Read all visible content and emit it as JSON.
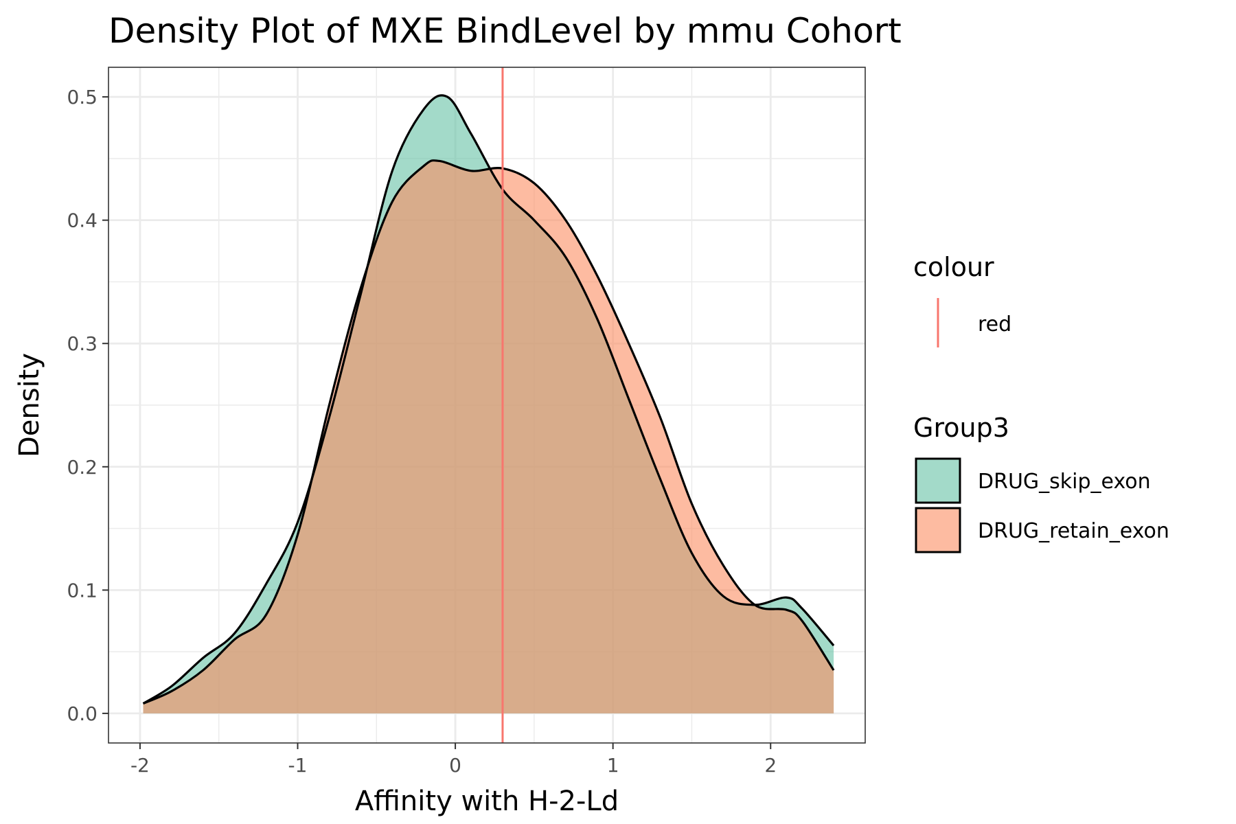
{
  "chart_data": {
    "type": "area",
    "title": "Density Plot of MXE BindLevel by mmu Cohort",
    "xlabel": "Affinity with H-2-Ld",
    "ylabel": "Density",
    "xlim": [
      -2.2,
      2.6
    ],
    "ylim": [
      -0.024,
      0.524
    ],
    "x_ticks": [
      -2,
      -1,
      0,
      1,
      2
    ],
    "x_tick_labels": [
      "-2",
      "-1",
      "0",
      "1",
      "2"
    ],
    "y_ticks": [
      0.0,
      0.1,
      0.2,
      0.3,
      0.4,
      0.5
    ],
    "y_tick_labels": [
      "0.0",
      "0.1",
      "0.2",
      "0.3",
      "0.4",
      "0.5"
    ],
    "grid": true,
    "vline": {
      "x": 0.3,
      "color": "#f8766d"
    },
    "series": [
      {
        "name": "DRUG_skip_exon",
        "color": "#66c2a5",
        "x": [
          -1.98,
          -1.8,
          -1.6,
          -1.4,
          -1.2,
          -1.0,
          -0.8,
          -0.6,
          -0.4,
          -0.2,
          -0.05,
          0.1,
          0.3,
          0.5,
          0.7,
          0.9,
          1.1,
          1.3,
          1.5,
          1.7,
          1.9,
          2.1,
          2.2,
          2.4
        ],
        "y": [
          0.008,
          0.022,
          0.045,
          0.065,
          0.105,
          0.155,
          0.24,
          0.34,
          0.44,
          0.49,
          0.5,
          0.47,
          0.425,
          0.4,
          0.37,
          0.32,
          0.255,
          0.19,
          0.13,
          0.095,
          0.088,
          0.094,
          0.085,
          0.055
        ]
      },
      {
        "name": "DRUG_retain_exon",
        "color": "#fc8d62",
        "x": [
          -1.98,
          -1.8,
          -1.6,
          -1.4,
          -1.2,
          -1.0,
          -0.8,
          -0.6,
          -0.4,
          -0.2,
          -0.1,
          0.1,
          0.3,
          0.5,
          0.7,
          0.9,
          1.1,
          1.3,
          1.5,
          1.7,
          1.9,
          2.1,
          2.2,
          2.4
        ],
        "y": [
          0.008,
          0.018,
          0.035,
          0.06,
          0.08,
          0.145,
          0.25,
          0.345,
          0.415,
          0.444,
          0.448,
          0.44,
          0.442,
          0.43,
          0.4,
          0.355,
          0.3,
          0.24,
          0.17,
          0.12,
          0.088,
          0.084,
          0.075,
          0.035
        ]
      }
    ],
    "legends": [
      {
        "title": "colour",
        "items": [
          {
            "label": "red",
            "color": "#f8766d",
            "kind": "line"
          }
        ]
      },
      {
        "title": "Group3",
        "items": [
          {
            "label": "DRUG_skip_exon",
            "color": "#66c2a5",
            "kind": "fill"
          },
          {
            "label": "DRUG_retain_exon",
            "color": "#fc8d62",
            "kind": "fill"
          }
        ]
      }
    ],
    "legend_position": "right"
  }
}
